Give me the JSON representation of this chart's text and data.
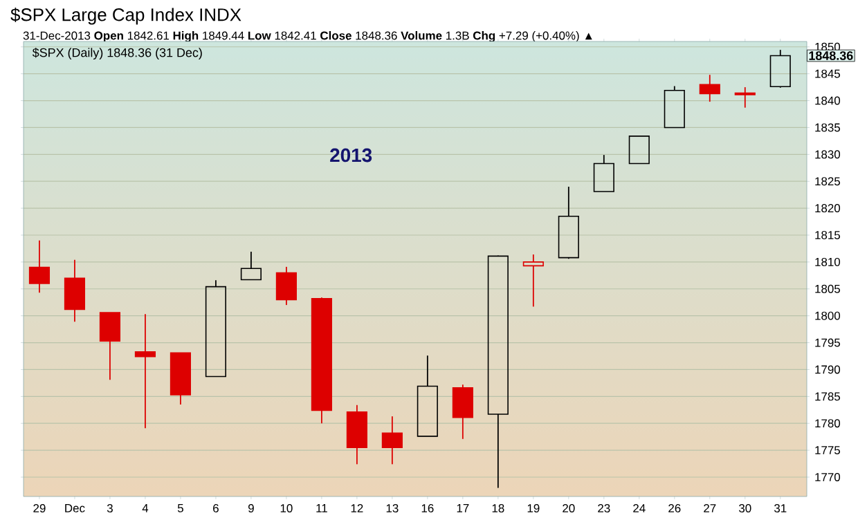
{
  "chart_data": {
    "type": "candlestick",
    "title": "$SPX Large Cap Index INDX",
    "subtitle": "31-Dec-2013   **Open** 1842.61  **High** 1849.44  **Low** 1842.41  **Close** 1848.36  **Volume** 1.3B  **Chg** +7.29 (+0.40%) ▲",
    "annotations": [
      "$SPX (Daily) 1848.36 (31 Dec)",
      "2013",
      {
        "text": "1848.36",
        "x": "31",
        "y": 1848.36
      }
    ],
    "categories": [
      "29",
      "Dec",
      "3",
      "4",
      "5",
      "6",
      "9",
      "10",
      "11",
      "12",
      "13",
      "16",
      "17",
      "18",
      "19",
      "20",
      "23",
      "24",
      "26",
      "27",
      "30",
      "31"
    ],
    "ohlc": [
      [
        1809,
        1814,
        1804.3,
        1806
      ],
      [
        1807,
        1810.4,
        1798.9,
        1801.2
      ],
      [
        1800.6,
        1800.6,
        1788.1,
        1795.3
      ],
      [
        1793.3,
        1800.3,
        1779.1,
        1792.4
      ],
      [
        1793.1,
        1793.1,
        1783.5,
        1785.3
      ],
      [
        1788.7,
        1806.6,
        1788.7,
        1805.4
      ],
      [
        1806.7,
        1811.9,
        1806.7,
        1808.8
      ],
      [
        1808,
        1809.1,
        1802,
        1803
      ],
      [
        1803.2,
        1803.4,
        1780,
        1782.4
      ],
      [
        1782.1,
        1783.4,
        1772.4,
        1775.5
      ],
      [
        1778.2,
        1781.3,
        1772.4,
        1775.5
      ],
      [
        1777.6,
        1792.6,
        1777.6,
        1786.9
      ],
      [
        1786.6,
        1787.2,
        1777.1,
        1781.1
      ],
      [
        1781.7,
        1811.2,
        1768,
        1811.1
      ],
      [
        1809.3,
        1811.4,
        1801.7,
        1810
      ],
      [
        1810.8,
        1824,
        1810.6,
        1818.5
      ],
      [
        1823.1,
        1829.9,
        1823.1,
        1828.3
      ],
      [
        1828.3,
        1833.4,
        1828.3,
        1833.4
      ],
      [
        1835,
        1842.7,
        1835,
        1841.9
      ],
      [
        1843,
        1844.8,
        1839.8,
        1841.3
      ],
      [
        1841.4,
        1842.5,
        1838.7,
        1841.1
      ],
      [
        1842.61,
        1849.44,
        1842.41,
        1848.36
      ]
    ],
    "colors": [
      "#dd0000",
      "#dd0000",
      "#dd0000",
      "#dd0000",
      "#dd0000",
      "#000000",
      "#000000",
      "#dd0000",
      "#dd0000",
      "#dd0000",
      "#dd0000",
      "#000000",
      "#dd0000",
      "#000000",
      "#dd0000",
      "#000000",
      "#000000",
      "#000000",
      "#000000",
      "#dd0000",
      "#dd0000",
      "#000000"
    ],
    "ylim": [
      1766.4,
      1851
    ],
    "yticks": [
      1770,
      1775,
      1780,
      1785,
      1790,
      1795,
      1800,
      1805,
      1810,
      1815,
      1820,
      1825,
      1830,
      1835,
      1840,
      1845,
      1850
    ],
    "grid": "y"
  }
}
